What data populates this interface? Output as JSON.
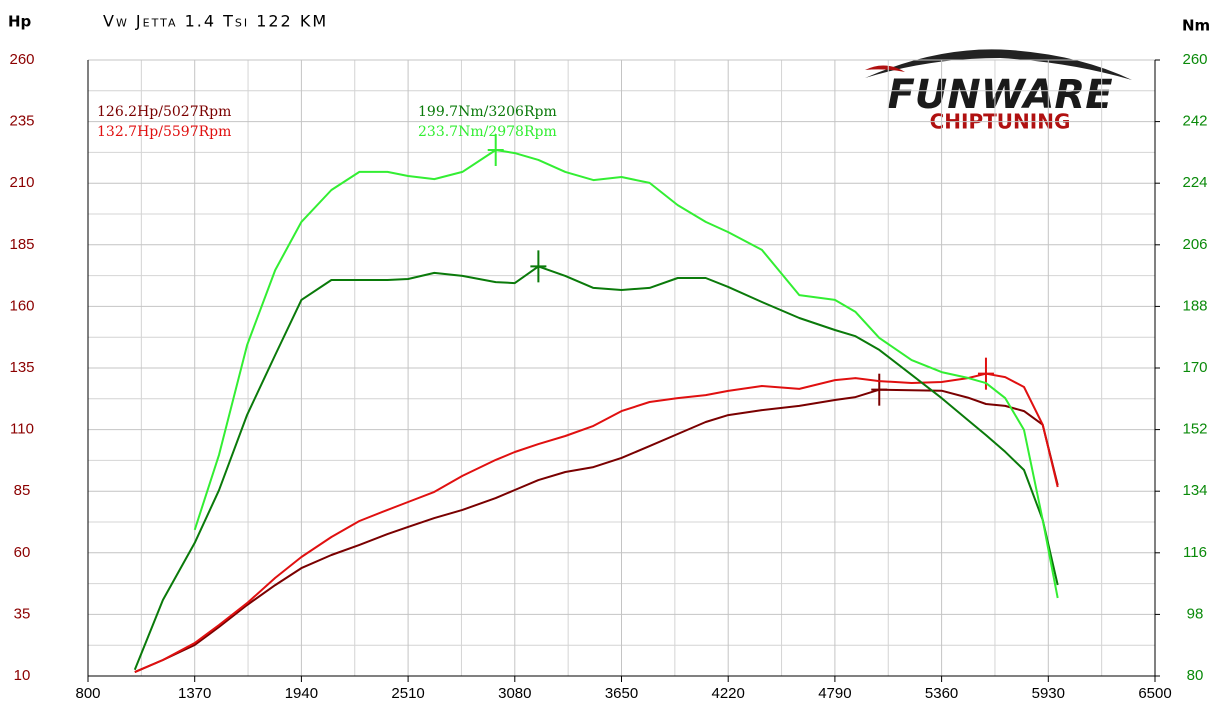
{
  "chart_data": {
    "type": "line",
    "title": "Vw Jetta 1.4 Tsi 122 KM",
    "y_label": "Hp",
    "y2_label": "Nm",
    "logo": {
      "brand": "FUNWARE",
      "sub": "CHIPTUNING"
    },
    "xlim": [
      800,
      6500
    ],
    "xticks": [
      800,
      1370,
      1940,
      2510,
      3080,
      3650,
      4220,
      4790,
      5360,
      5930,
      6500
    ],
    "xminor": [
      1085,
      1655,
      2225,
      2795,
      3365,
      3935,
      4505,
      5075,
      5645,
      6215
    ],
    "ylim": [
      10,
      260
    ],
    "yticks": [
      10,
      35,
      60,
      85,
      110,
      135,
      160,
      185,
      210,
      235,
      260
    ],
    "yminor": [
      22.5,
      47.5,
      72.5,
      97.5,
      122.5,
      147.5,
      172.5,
      197.5,
      222.5,
      247.5
    ],
    "y2lim": [
      80,
      260
    ],
    "y2ticks": [
      80,
      98,
      116,
      134,
      152,
      170,
      188,
      206,
      224,
      242,
      260
    ],
    "grid": true,
    "x": [
      1050,
      1200,
      1370,
      1500,
      1650,
      1800,
      1940,
      2100,
      2250,
      2400,
      2510,
      2650,
      2800,
      2978,
      3080,
      3206,
      3350,
      3500,
      3650,
      3800,
      3950,
      4100,
      4220,
      4400,
      4600,
      4790,
      4900,
      5027,
      5200,
      5360,
      5500,
      5597,
      5700,
      5800,
      5900,
      5980
    ],
    "series": [
      {
        "name": "126.2Hp/5027Rpm",
        "color": "#7a0000",
        "axis": "y",
        "peak": {
          "x": 5027,
          "value": 126.2
        },
        "values": [
          11.6,
          16.5,
          22.6,
          29.9,
          38.8,
          46.9,
          53.8,
          59.1,
          63.2,
          67.6,
          70.5,
          74.1,
          77.4,
          82.2,
          85.5,
          89.5,
          92.8,
          94.8,
          98.5,
          103.3,
          108.2,
          113.1,
          115.9,
          117.9,
          119.6,
          122,
          123.2,
          126.2,
          126,
          125.8,
          123,
          120.4,
          119.6,
          117.5,
          112,
          87.5
        ]
      },
      {
        "name": "132.7Hp/5597Rpm",
        "color": "#e01010",
        "axis": "y",
        "peak": {
          "x": 5597,
          "value": 132.7
        },
        "values": [
          11.6,
          16.5,
          23.4,
          30.7,
          39.6,
          49.8,
          58.3,
          66.4,
          72.9,
          77.4,
          80.6,
          84.7,
          91.2,
          97.7,
          100.9,
          104.1,
          107.4,
          111.5,
          117.5,
          121.2,
          122.8,
          124,
          125.7,
          127.7,
          126.5,
          130.1,
          130.9,
          129.7,
          128.9,
          129.3,
          130.9,
          132.7,
          131.3,
          127.3,
          112,
          86.7
        ]
      },
      {
        "name": "199.7Nm/3206Rpm",
        "color": "#0a7a0a",
        "axis": "y2",
        "peak": {
          "x": 3206,
          "value": 199.7
        },
        "values": [
          81.8,
          102.2,
          118.9,
          134.3,
          156.3,
          173.8,
          189.9,
          195.7,
          195.7,
          195.7,
          196,
          197.8,
          196.9,
          195.1,
          194.8,
          199.7,
          196.9,
          193.4,
          192.8,
          193.4,
          196.3,
          196.3,
          193.7,
          189.3,
          184.6,
          181.1,
          179.3,
          175.3,
          168,
          161.2,
          154.8,
          150.4,
          145.5,
          140.2,
          125.6,
          106.6
        ]
      },
      {
        "name": "233.7Nm/2978Rpm",
        "color": "#33ee33",
        "axis": "y2",
        "peak": {
          "x": 2978,
          "value": 233.7
        },
        "values": [
          null,
          null,
          122.7,
          144.6,
          176.7,
          198.6,
          212.7,
          222,
          227.3,
          227.3,
          226.1,
          225.2,
          227.3,
          233.7,
          232.8,
          230.8,
          227.3,
          224.9,
          225.8,
          224.1,
          217.6,
          212.7,
          209.7,
          204.5,
          191.3,
          189.9,
          186.4,
          178.8,
          172.3,
          168.8,
          167.1,
          165.6,
          161.2,
          151.9,
          125.6,
          102.8
        ]
      }
    ]
  }
}
